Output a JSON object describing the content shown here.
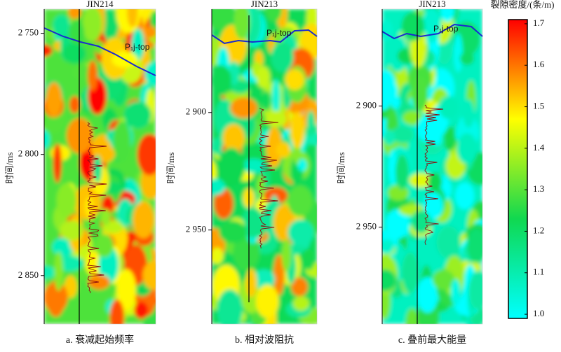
{
  "chart_data": [
    {
      "type": "heatmap",
      "title": "JIN214",
      "caption": "a. 衰减起始频率",
      "y_label": "时间/ms",
      "annotation": "P₁j-top",
      "ylim": [
        2870,
        2740
      ],
      "yticks": [
        {
          "value": 2750,
          "label": "2 750"
        },
        {
          "value": 2800,
          "label": "2 800"
        },
        {
          "value": 2850,
          "label": "2 850"
        }
      ]
    },
    {
      "type": "heatmap",
      "title": "JIN213",
      "caption": "b. 相对波阻抗",
      "y_label": "时间/ms",
      "annotation": "P₁j-top",
      "ylim": [
        2990,
        2856
      ],
      "yticks": [
        {
          "value": 2900,
          "label": "2 900"
        },
        {
          "value": 2950,
          "label": "2 950"
        }
      ]
    },
    {
      "type": "heatmap",
      "title": "JIN213",
      "caption": "c. 叠前最大能量",
      "y_label": "时间/ms",
      "annotation": "P₁j-top",
      "ylim": [
        2990,
        2860
      ],
      "yticks": [
        {
          "value": 2900,
          "label": "2 900"
        },
        {
          "value": 2950,
          "label": "2 950"
        }
      ]
    },
    {
      "type": "colorbar",
      "title": "裂隙密度/(条/m)",
      "ylim": [
        0.99,
        1.71
      ],
      "yticks": [
        {
          "value": 1,
          "label": "1.0"
        },
        1.1,
        1.2,
        1.3,
        1.4,
        1.5,
        1.6,
        1.7
      ],
      "colors": [
        "#00ffff",
        "#10d850",
        "#ffff00",
        "#ff0000"
      ]
    }
  ]
}
